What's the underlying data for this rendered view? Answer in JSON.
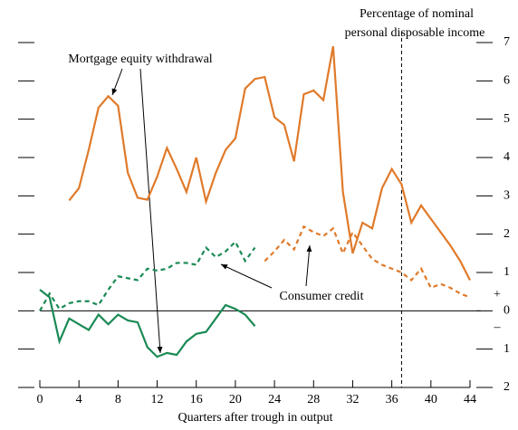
{
  "chart_data": {
    "type": "line",
    "y_axis_label": [
      "Percentage of nominal",
      "personal disposable income"
    ],
    "x_axis_label": "Quarters after trough in output",
    "annotations": {
      "mortgage": "Mortgage equity withdrawal",
      "credit": "Consumer credit",
      "plus": "+",
      "minus": "–"
    },
    "x": [
      0,
      1,
      2,
      3,
      4,
      5,
      6,
      7,
      8,
      9,
      10,
      11,
      12,
      13,
      14,
      15,
      16,
      17,
      18,
      19,
      20,
      21,
      22,
      23,
      24,
      25,
      26,
      27,
      28,
      29,
      30,
      31,
      32,
      33,
      34,
      35,
      36,
      37,
      38,
      39,
      40,
      41,
      42,
      43,
      44
    ],
    "xlim": [
      0,
      44
    ],
    "xticks": [
      0,
      4,
      8,
      12,
      16,
      20,
      24,
      28,
      32,
      36,
      40,
      44
    ],
    "ylim": [
      -2,
      7
    ],
    "yticks": [
      {
        "value": -2,
        "label": "2"
      },
      {
        "value": -1,
        "label": "1"
      },
      0,
      1,
      2,
      3,
      4,
      5,
      6,
      7
    ],
    "vline": 37,
    "series": [
      {
        "color": "#e07a2a",
        "dashed": false,
        "values": [
          null,
          null,
          null,
          2.88,
          3.2,
          4.2,
          5.3,
          5.6,
          5.35,
          3.6,
          2.95,
          2.9,
          3.5,
          4.25,
          3.7,
          3.1,
          4.0,
          2.85,
          3.6,
          4.2,
          4.5,
          5.8,
          6.05,
          6.1,
          5.05,
          4.85,
          3.9,
          5.65,
          5.75,
          5.5,
          6.9,
          3.1,
          1.5,
          2.3,
          2.15,
          3.2,
          3.7,
          3.3,
          2.3,
          2.75,
          2.4,
          2.05,
          1.7,
          1.3,
          0.8
        ]
      },
      {
        "color": "#e07a2a",
        "dashed": true,
        "values": [
          null,
          null,
          null,
          null,
          null,
          null,
          null,
          null,
          null,
          null,
          null,
          null,
          null,
          null,
          null,
          null,
          null,
          null,
          null,
          null,
          null,
          null,
          null,
          1.3,
          1.55,
          1.85,
          1.6,
          2.2,
          2.05,
          1.95,
          2.15,
          1.5,
          2.05,
          1.7,
          1.35,
          1.2,
          1.1,
          1.0,
          0.8,
          1.1,
          0.6,
          0.7,
          0.6,
          0.45,
          0.35
        ]
      },
      {
        "color": "#1a8a55",
        "dashed": true,
        "values": [
          0,
          0.45,
          0.05,
          0.2,
          0.25,
          0.25,
          0.15,
          0.55,
          0.9,
          0.85,
          0.8,
          1.1,
          1.05,
          1.1,
          1.25,
          1.25,
          1.2,
          1.65,
          1.4,
          1.55,
          1.8,
          1.3,
          1.65,
          null,
          null,
          null,
          null,
          null,
          null,
          null,
          null,
          null,
          null,
          null,
          null,
          null,
          null,
          null,
          null,
          null,
          null,
          null,
          null,
          null,
          null
        ]
      },
      {
        "color": "#1a8a55",
        "dashed": false,
        "values": [
          0.55,
          0.35,
          -0.8,
          -0.2,
          -0.35,
          -0.5,
          -0.1,
          -0.35,
          -0.1,
          -0.25,
          -0.3,
          -0.95,
          -1.2,
          -1.1,
          -1.15,
          -0.8,
          -0.6,
          -0.55,
          -0.2,
          0.15,
          0.05,
          -0.1,
          -0.4,
          null,
          null,
          null,
          null,
          null,
          null,
          null,
          null,
          null,
          null,
          null,
          null,
          null,
          null,
          null,
          null,
          null,
          null,
          null,
          null,
          null,
          null
        ]
      }
    ]
  }
}
